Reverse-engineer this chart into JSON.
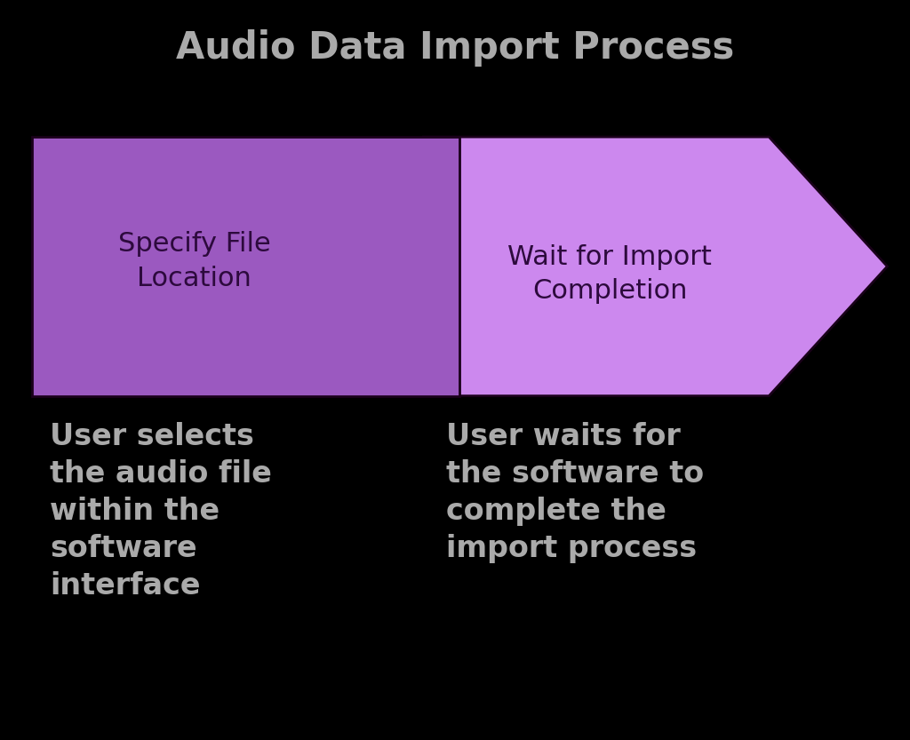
{
  "title": "Audio Data Import Process",
  "title_color": "#aaaaaa",
  "title_fontsize": 30,
  "background_color": "#000000",
  "rect_color": "#9B59C0",
  "rect_edge_color": "#1a001a",
  "arrow_color": "#CC88EE",
  "arrow_edge_color": "#1a001a",
  "step1_label": "Specify File\nLocation",
  "step2_label": "Wait for Import\nCompletion",
  "step1_desc": "User selects\nthe audio file\nwithin the\nsoftware\ninterface",
  "step2_desc": "User waits for\nthe software to\ncomplete the\nimport process",
  "label_color": "#2d0a3d",
  "desc_color": "#aaaaaa",
  "label_fontsize": 22,
  "desc_fontsize": 24
}
